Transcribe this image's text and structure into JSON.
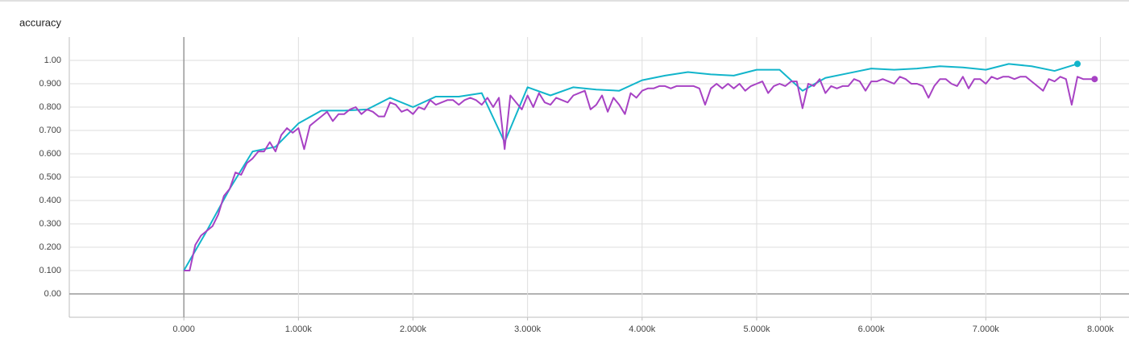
{
  "chart_data": {
    "type": "line",
    "title": "accuracy",
    "xlim": [
      -1000,
      8250
    ],
    "ylim": [
      -0.1,
      1.1
    ],
    "grid": true,
    "xticks": [
      {
        "value": 0,
        "label": "0.000"
      },
      {
        "value": 1000,
        "label": "1.000k"
      },
      {
        "value": 2000,
        "label": "2.000k"
      },
      {
        "value": 3000,
        "label": "3.000k"
      },
      {
        "value": 4000,
        "label": "4.000k"
      },
      {
        "value": 5000,
        "label": "5.000k"
      },
      {
        "value": 6000,
        "label": "6.000k"
      },
      {
        "value": 7000,
        "label": "7.000k"
      },
      {
        "value": 8000,
        "label": "8.000k"
      }
    ],
    "yticks": [
      {
        "value": 0,
        "label": "0.00"
      },
      {
        "value": 0.1,
        "label": "0.100"
      },
      {
        "value": 0.2,
        "label": "0.200"
      },
      {
        "value": 0.3,
        "label": "0.300"
      },
      {
        "value": 0.4,
        "label": "0.400"
      },
      {
        "value": 0.5,
        "label": "0.500"
      },
      {
        "value": 0.6,
        "label": "0.600"
      },
      {
        "value": 0.7,
        "label": "0.700"
      },
      {
        "value": 0.8,
        "label": "0.800"
      },
      {
        "value": 0.9,
        "label": "0.900"
      },
      {
        "value": 1,
        "label": "1.00"
      }
    ],
    "series": [
      {
        "color": "#12b5cb",
        "x": [
          0,
          200,
          400,
          600,
          800,
          1000,
          1200,
          1400,
          1600,
          1800,
          2000,
          2200,
          2400,
          2600,
          2800,
          3000,
          3200,
          3400,
          3600,
          3800,
          4000,
          4200,
          4400,
          4600,
          4800,
          5000,
          5200,
          5400,
          5600,
          5800,
          6000,
          6200,
          6400,
          6600,
          6800,
          7000,
          7200,
          7400,
          7600,
          7800
        ],
        "values": [
          0.1,
          0.27,
          0.45,
          0.61,
          0.63,
          0.73,
          0.785,
          0.785,
          0.79,
          0.84,
          0.8,
          0.845,
          0.845,
          0.86,
          0.65,
          0.885,
          0.85,
          0.885,
          0.875,
          0.87,
          0.915,
          0.935,
          0.95,
          0.94,
          0.935,
          0.96,
          0.96,
          0.87,
          0.925,
          0.945,
          0.965,
          0.96,
          0.965,
          0.975,
          0.97,
          0.96,
          0.985,
          0.975,
          0.955,
          0.985
        ]
      },
      {
        "color": "#a742c4",
        "x": [
          0,
          50,
          100,
          150,
          200,
          250,
          300,
          350,
          400,
          450,
          500,
          550,
          600,
          650,
          700,
          750,
          800,
          850,
          900,
          950,
          1000,
          1050,
          1100,
          1150,
          1200,
          1250,
          1300,
          1350,
          1400,
          1450,
          1500,
          1550,
          1600,
          1650,
          1700,
          1750,
          1800,
          1850,
          1900,
          1950,
          2000,
          2050,
          2100,
          2150,
          2200,
          2250,
          2300,
          2350,
          2400,
          2450,
          2500,
          2550,
          2600,
          2650,
          2700,
          2750,
          2800,
          2850,
          2900,
          2950,
          3000,
          3050,
          3100,
          3150,
          3200,
          3250,
          3300,
          3350,
          3400,
          3450,
          3500,
          3550,
          3600,
          3650,
          3700,
          3750,
          3800,
          3850,
          3900,
          3950,
          4000,
          4050,
          4100,
          4150,
          4200,
          4250,
          4300,
          4350,
          4400,
          4450,
          4500,
          4550,
          4600,
          4650,
          4700,
          4750,
          4800,
          4850,
          4900,
          4950,
          5000,
          5050,
          5100,
          5150,
          5200,
          5250,
          5300,
          5350,
          5400,
          5450,
          5500,
          5550,
          5600,
          5650,
          5700,
          5750,
          5800,
          5850,
          5900,
          5950,
          6000,
          6050,
          6100,
          6150,
          6200,
          6250,
          6300,
          6350,
          6400,
          6450,
          6500,
          6550,
          6600,
          6650,
          6700,
          6750,
          6800,
          6850,
          6900,
          6950,
          7000,
          7050,
          7100,
          7150,
          7200,
          7250,
          7300,
          7350,
          7400,
          7450,
          7500,
          7550,
          7600,
          7650,
          7700,
          7750,
          7800,
          7850,
          7900,
          7950
        ],
        "values": [
          0.1,
          0.1,
          0.21,
          0.25,
          0.27,
          0.29,
          0.34,
          0.42,
          0.45,
          0.52,
          0.51,
          0.56,
          0.58,
          0.61,
          0.61,
          0.65,
          0.61,
          0.68,
          0.71,
          0.69,
          0.71,
          0.62,
          0.72,
          0.74,
          0.76,
          0.78,
          0.74,
          0.77,
          0.77,
          0.79,
          0.8,
          0.77,
          0.79,
          0.78,
          0.76,
          0.76,
          0.82,
          0.81,
          0.78,
          0.79,
          0.77,
          0.8,
          0.79,
          0.83,
          0.81,
          0.82,
          0.83,
          0.83,
          0.81,
          0.83,
          0.84,
          0.83,
          0.81,
          0.84,
          0.8,
          0.84,
          0.62,
          0.85,
          0.82,
          0.79,
          0.85,
          0.8,
          0.86,
          0.82,
          0.81,
          0.84,
          0.83,
          0.82,
          0.85,
          0.86,
          0.87,
          0.79,
          0.81,
          0.85,
          0.78,
          0.84,
          0.81,
          0.77,
          0.86,
          0.84,
          0.87,
          0.88,
          0.88,
          0.89,
          0.89,
          0.88,
          0.89,
          0.89,
          0.89,
          0.89,
          0.88,
          0.81,
          0.88,
          0.9,
          0.88,
          0.9,
          0.88,
          0.9,
          0.87,
          0.89,
          0.9,
          0.91,
          0.86,
          0.89,
          0.9,
          0.89,
          0.91,
          0.91,
          0.795,
          0.9,
          0.89,
          0.92,
          0.86,
          0.89,
          0.88,
          0.89,
          0.89,
          0.92,
          0.91,
          0.87,
          0.91,
          0.91,
          0.92,
          0.91,
          0.9,
          0.93,
          0.92,
          0.9,
          0.9,
          0.89,
          0.84,
          0.89,
          0.92,
          0.92,
          0.9,
          0.89,
          0.93,
          0.88,
          0.92,
          0.92,
          0.9,
          0.93,
          0.92,
          0.93,
          0.93,
          0.92,
          0.93,
          0.93,
          0.91,
          0.89,
          0.87,
          0.92,
          0.91,
          0.93,
          0.92,
          0.81,
          0.93,
          0.92,
          0.92,
          0.92
        ]
      }
    ]
  }
}
